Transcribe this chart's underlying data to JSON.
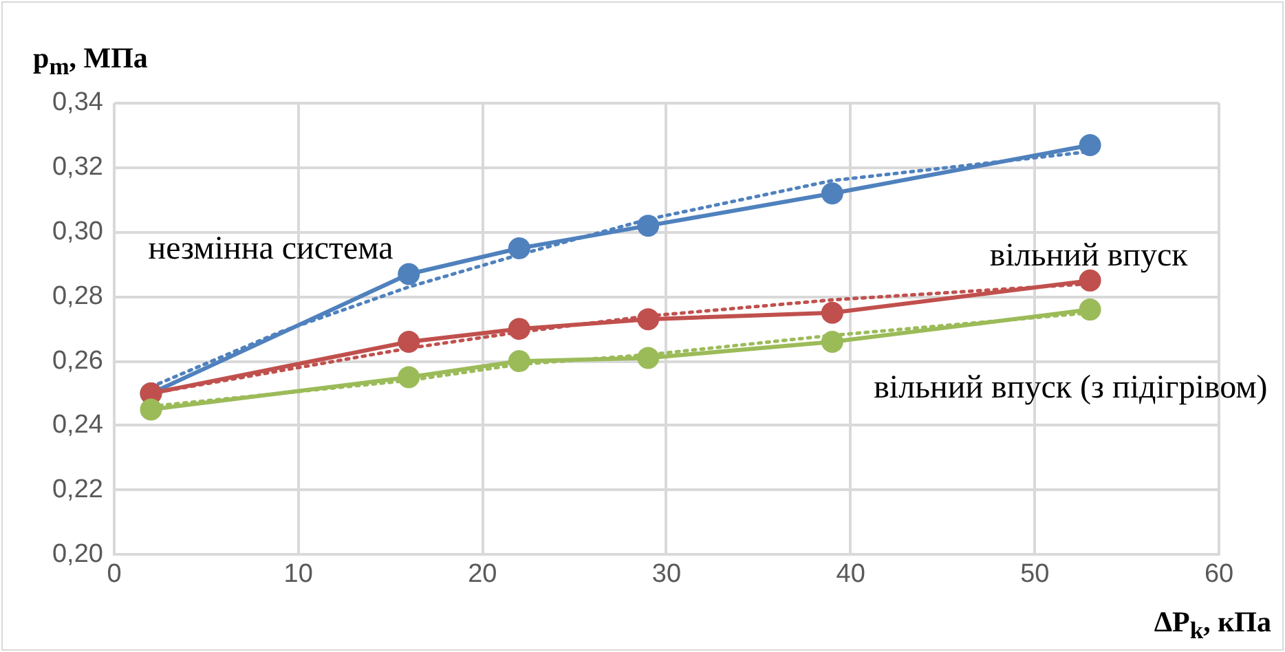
{
  "chart_data": {
    "type": "line",
    "xlabel": "ΔP$_{k}$, кПа",
    "ylabel": "p$_{m}$, МПа",
    "x": [
      2,
      16,
      22,
      29,
      39,
      53
    ],
    "series": [
      {
        "name": "незмінна система",
        "color": "#4f81bd",
        "values": [
          0.25,
          0.287,
          0.295,
          0.302,
          0.312,
          0.327
        ]
      },
      {
        "name": "вільний впуск",
        "color": "#c0504d",
        "values": [
          0.25,
          0.266,
          0.27,
          0.273,
          0.275,
          0.285
        ]
      },
      {
        "name": "вільний впуск (з підігрівом)",
        "color": "#9bbb59",
        "values": [
          0.245,
          0.255,
          0.26,
          0.261,
          0.266,
          0.276
        ]
      },
      {
        "type": "line",
        "color": "#4f81bd",
        "line_style": "dotted",
        "marker": "none",
        "x": [
          2,
          9,
          16,
          22,
          29,
          39,
          53
        ],
        "values": [
          0.252,
          0.269,
          0.283,
          0.293,
          0.304,
          0.316,
          0.325
        ]
      },
      {
        "type": "line",
        "color": "#c0504d",
        "line_style": "dotted",
        "marker": "none",
        "x": [
          2,
          9,
          16,
          22,
          29,
          39,
          53
        ],
        "values": [
          0.25,
          0.257,
          0.264,
          0.269,
          0.274,
          0.279,
          0.284
        ]
      },
      {
        "type": "line",
        "color": "#9bbb59",
        "line_style": "dotted",
        "marker": "none",
        "x": [
          2,
          9,
          16,
          22,
          29,
          39,
          53
        ],
        "values": [
          0.246,
          0.25,
          0.254,
          0.259,
          0.262,
          0.268,
          0.275
        ]
      }
    ],
    "xlim": [
      0,
      60
    ],
    "xticks": [
      0,
      10,
      20,
      30,
      40,
      50,
      60
    ],
    "ylim": [
      0.2,
      0.34
    ],
    "yticks": [
      {
        "value": 0.2,
        "label": "0,20"
      },
      {
        "value": 0.22,
        "label": "0,22"
      },
      {
        "value": 0.24,
        "label": "0,24"
      },
      {
        "value": 0.26,
        "label": "0,26"
      },
      {
        "value": 0.28,
        "label": "0,28"
      },
      {
        "value": 0.3,
        "label": "0,30"
      },
      {
        "value": 0.32,
        "label": "0,32"
      },
      {
        "value": 0.34,
        "label": "0,34"
      }
    ],
    "grid": true,
    "legend": false,
    "marker": "circle",
    "line_style": "solid"
  }
}
